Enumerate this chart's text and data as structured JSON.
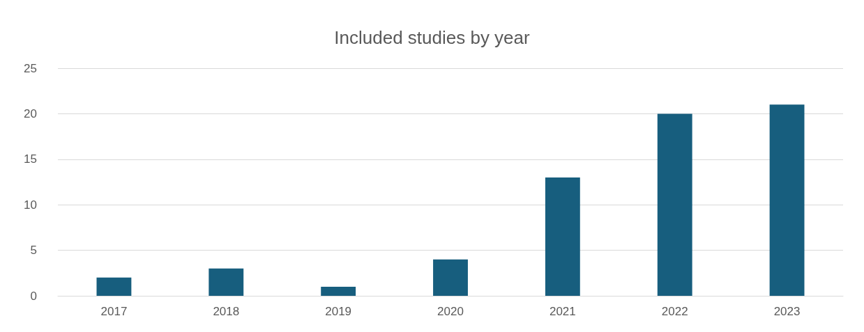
{
  "chart_data": {
    "type": "bar",
    "title": "Included studies by year",
    "categories": [
      "2017",
      "2018",
      "2019",
      "2020",
      "2021",
      "2022",
      "2023"
    ],
    "values": [
      2,
      3,
      1,
      4,
      13,
      20,
      21
    ],
    "color": "#175e7e",
    "ylim": [
      0,
      25
    ],
    "yticks": [
      0,
      5,
      10,
      15,
      20,
      25
    ],
    "grid": "y"
  }
}
